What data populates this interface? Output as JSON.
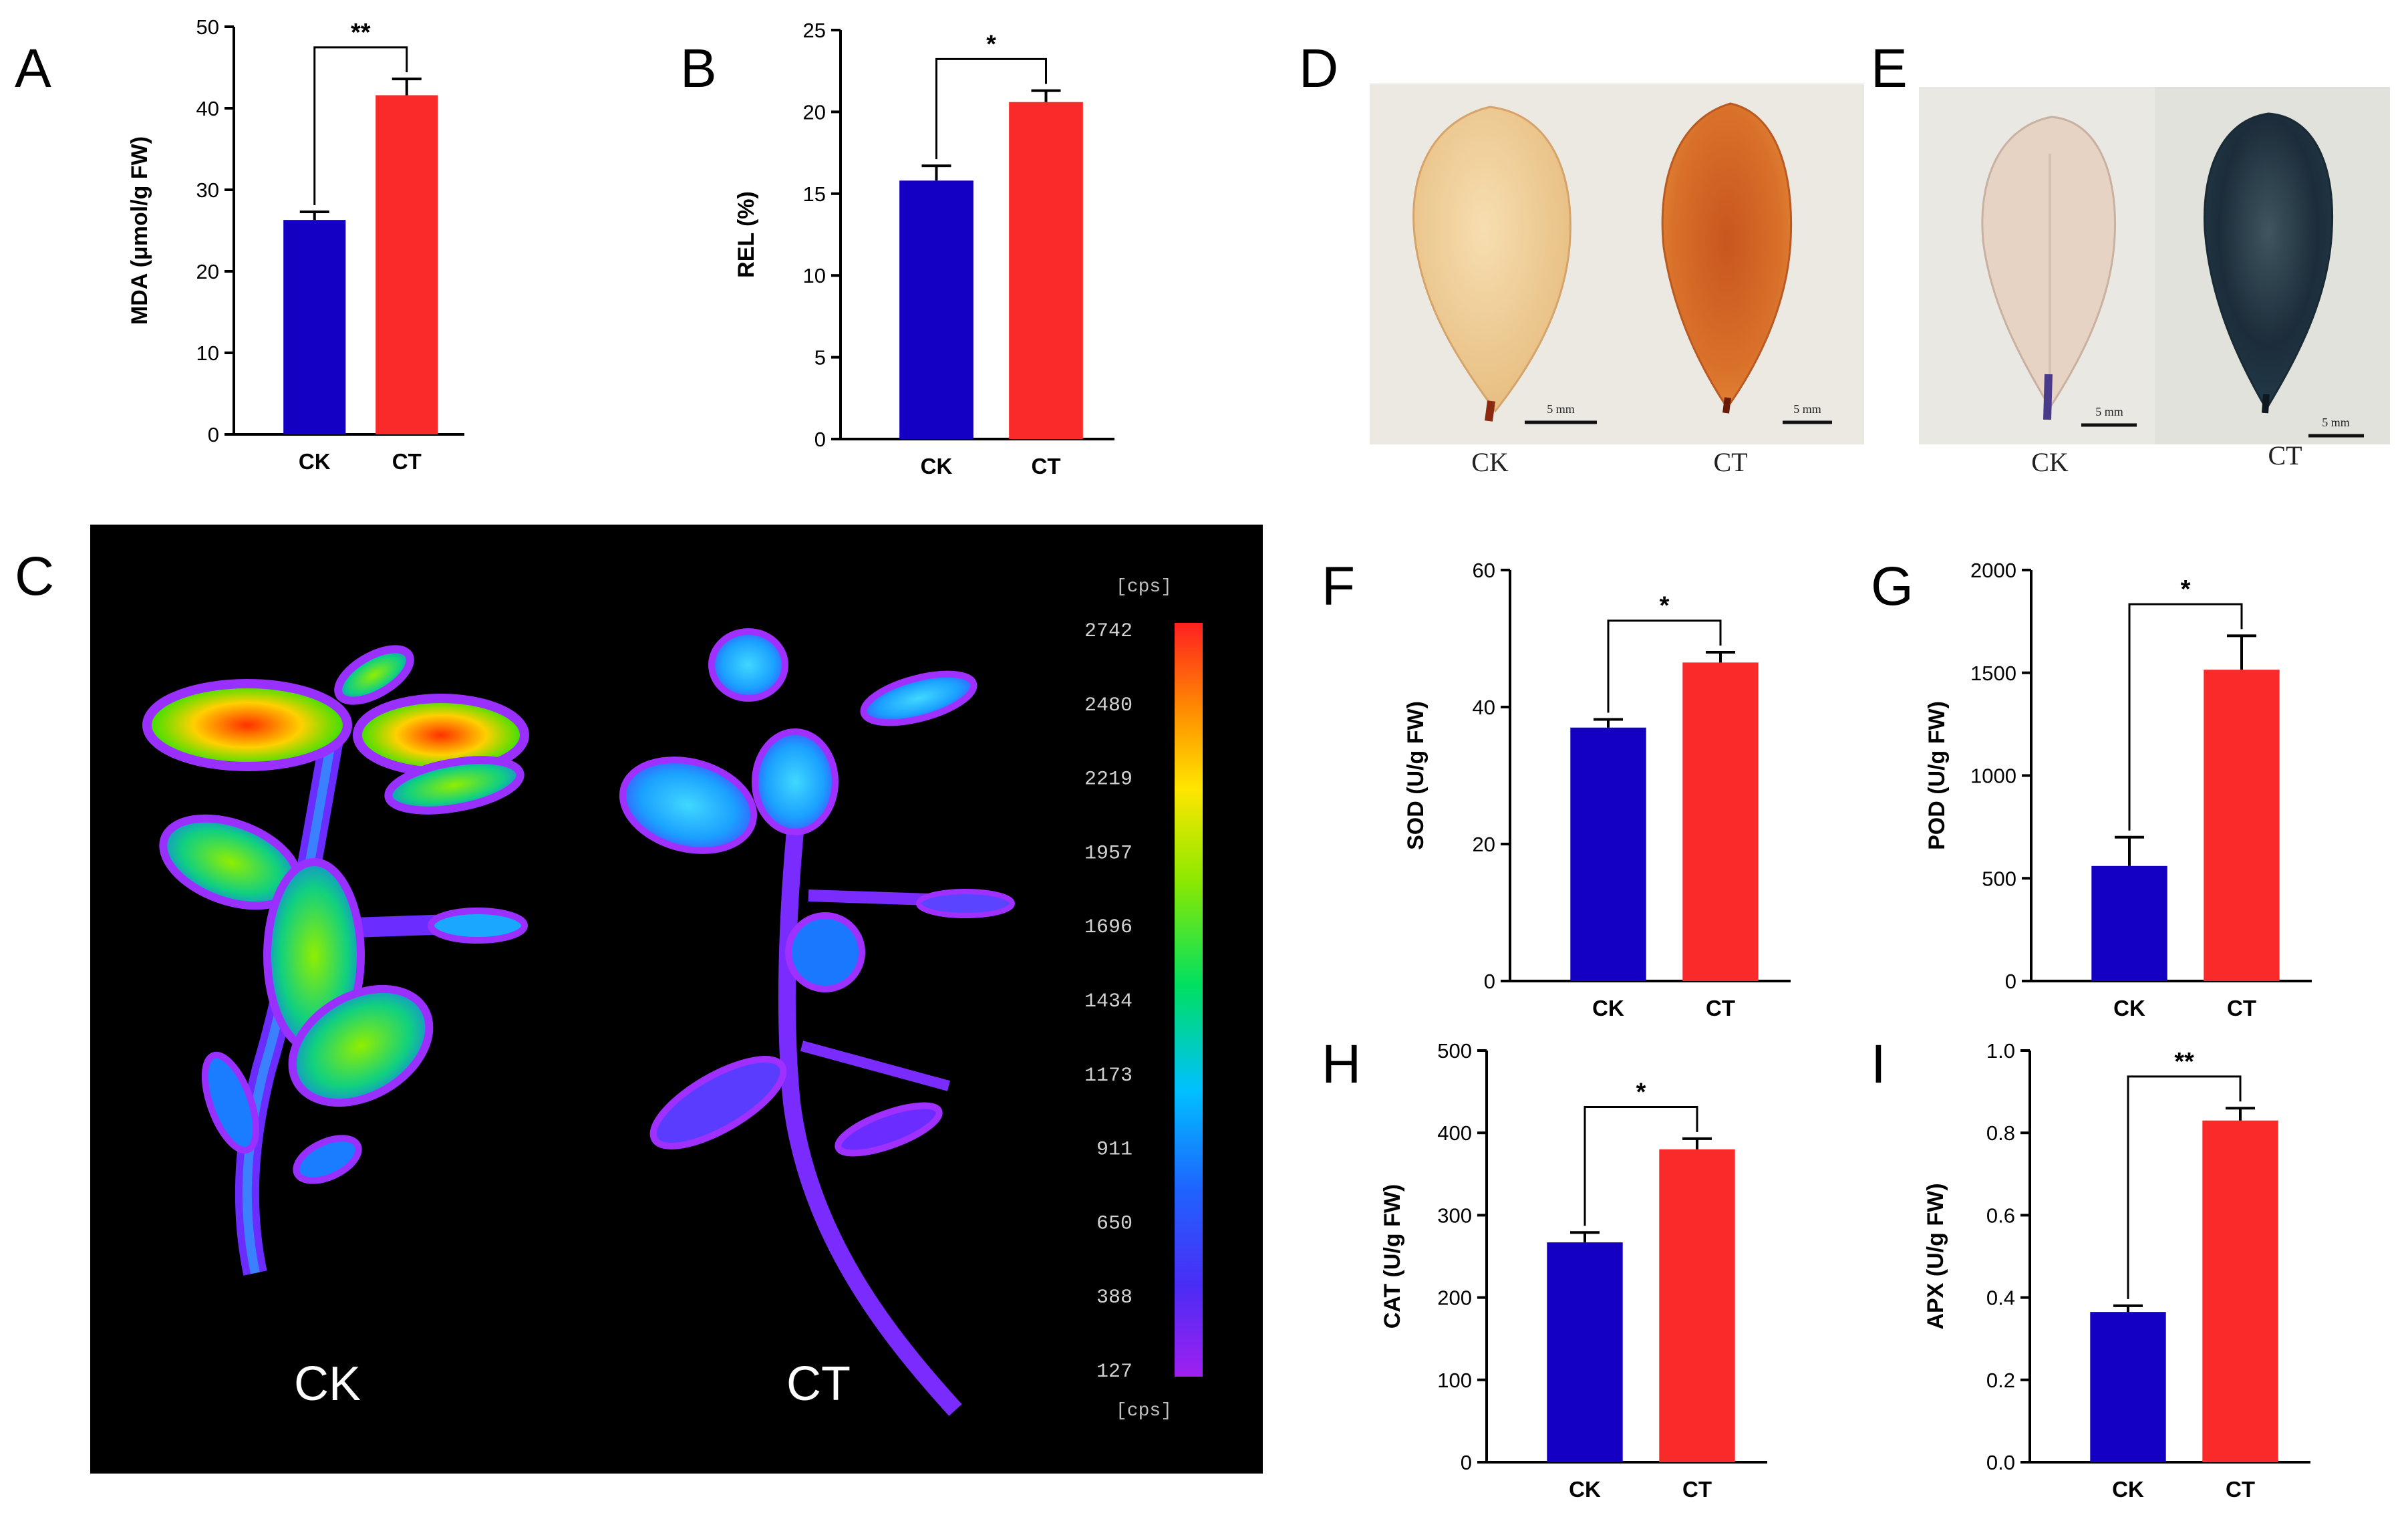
{
  "figure": {
    "panel_letters": [
      "A",
      "B",
      "C",
      "D",
      "E",
      "F",
      "G",
      "H",
      "I"
    ]
  },
  "colors": {
    "ck_bar": "#1400c2",
    "ct_bar": "#f92a2a",
    "axis": "#000000",
    "photo_bg": "#000000"
  },
  "chart_data": [
    {
      "panel": "A",
      "type": "bar",
      "categories": [
        "CK",
        "CT"
      ],
      "values": [
        26.3,
        41.6
      ],
      "errors": [
        1.0,
        2.0
      ],
      "ylabel": "MDA (μmol/g FW)",
      "ylim": [
        0,
        50
      ],
      "yticks": [
        "0",
        "10",
        "20",
        "30",
        "40",
        "50"
      ],
      "significance": "**"
    },
    {
      "panel": "B",
      "type": "bar",
      "categories": [
        "CK",
        "CT"
      ],
      "values": [
        15.8,
        20.6
      ],
      "errors": [
        0.9,
        0.7
      ],
      "ylabel": "REL (%)",
      "ylim": [
        0,
        25
      ],
      "yticks": [
        "0",
        "5",
        "10",
        "15",
        "20",
        "25"
      ],
      "significance": "*"
    },
    {
      "panel": "F",
      "type": "bar",
      "categories": [
        "CK",
        "CT"
      ],
      "values": [
        37.0,
        46.5
      ],
      "errors": [
        1.2,
        1.5
      ],
      "ylabel": "SOD (U/g FW)",
      "ylim": [
        0,
        60
      ],
      "yticks": [
        "0",
        "20",
        "40",
        "60"
      ],
      "significance": "*"
    },
    {
      "panel": "G",
      "type": "bar",
      "categories": [
        "CK",
        "CT"
      ],
      "values": [
        560,
        1515
      ],
      "errors": [
        140,
        165
      ],
      "ylabel": "POD (U/g FW)",
      "ylim": [
        0,
        2000
      ],
      "yticks": [
        "0",
        "500",
        "1000",
        "1500",
        "2000"
      ],
      "significance": "*"
    },
    {
      "panel": "H",
      "type": "bar",
      "categories": [
        "CK",
        "CT"
      ],
      "values": [
        267,
        380
      ],
      "errors": [
        12,
        13
      ],
      "ylabel": "CAT (U/g FW)",
      "ylim": [
        0,
        500
      ],
      "yticks": [
        "0",
        "100",
        "200",
        "300",
        "400",
        "500"
      ],
      "significance": "*"
    },
    {
      "panel": "I",
      "type": "bar",
      "categories": [
        "CK",
        "CT"
      ],
      "values": [
        0.365,
        0.83
      ],
      "errors": [
        0.015,
        0.03
      ],
      "ylabel": "APX (U/g FW)",
      "ylim": [
        0,
        1.0
      ],
      "yticks": [
        "0.0",
        "0.2",
        "0.4",
        "0.6",
        "0.8",
        "1.0"
      ],
      "significance": "**"
    }
  ],
  "panel_c": {
    "labels": [
      "CK",
      "CT"
    ],
    "colorbar_unit": "[cps]",
    "colorbar_ticks": [
      "2742",
      "2480",
      "2219",
      "1957",
      "1696",
      "1434",
      "1173",
      "911",
      "650",
      "388",
      "127"
    ]
  },
  "panel_d": {
    "labels": [
      "CK",
      "CT"
    ],
    "scale_bar": "5 mm"
  },
  "panel_e": {
    "labels": [
      "CK",
      "CT"
    ],
    "scale_bar": "5 mm"
  }
}
